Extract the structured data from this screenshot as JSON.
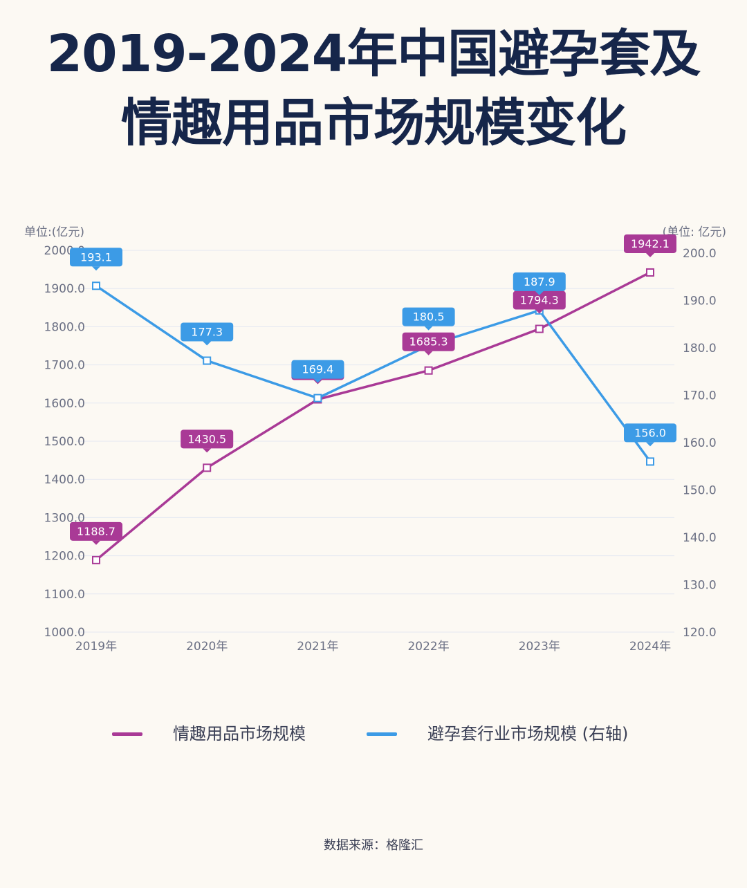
{
  "title": {
    "line1": "2019-2024年中国避孕套及",
    "line2": "情趣用品市场规模变化"
  },
  "colors": {
    "background": "#fcf9f3",
    "title": "#16264a",
    "series_left": "#a93a96",
    "series_right": "#3c9be6",
    "grid": "#e3e7f2",
    "axis_text": "#6b7084"
  },
  "chart_data": {
    "type": "line",
    "categories": [
      "2019年",
      "2020年",
      "2021年",
      "2022年",
      "2023年",
      "2024年"
    ],
    "left_axis": {
      "unit_label": "单位:(亿元)",
      "ylim": [
        1000,
        2000
      ],
      "ticks": [
        "1000.0",
        "1100.0",
        "1200.0",
        "1300.0",
        "1400.0",
        "1500.0",
        "1600.0",
        "1700.0",
        "1800.0",
        "1900.0",
        "2000.0"
      ]
    },
    "right_axis": {
      "unit_label": "(单位: 亿元)",
      "ylim": [
        120,
        200
      ],
      "ticks": [
        "120.0",
        "130.0",
        "140.0",
        "150.0",
        "160.0",
        "170.0",
        "180.0",
        "190.0",
        "200.0"
      ]
    },
    "series": [
      {
        "name": "情趣用品市场规模",
        "axis": "left",
        "values": [
          1188.7,
          1430.5,
          1609.6,
          1685.3,
          1794.3,
          1942.1
        ],
        "labels": [
          "1188.7",
          "1430.5",
          "1609.6",
          "1685.3",
          "1794.3",
          "1942.1"
        ]
      },
      {
        "name": "避孕套行业市场规模 (右轴)",
        "axis": "right",
        "values": [
          193.1,
          177.3,
          169.4,
          180.5,
          187.9,
          156.0
        ],
        "labels": [
          "193.1",
          "177.3",
          "169.4",
          "180.5",
          "187.9",
          "156.0"
        ]
      }
    ],
    "grid": true,
    "legend_position": "bottom"
  },
  "source": "数据来源：格隆汇"
}
